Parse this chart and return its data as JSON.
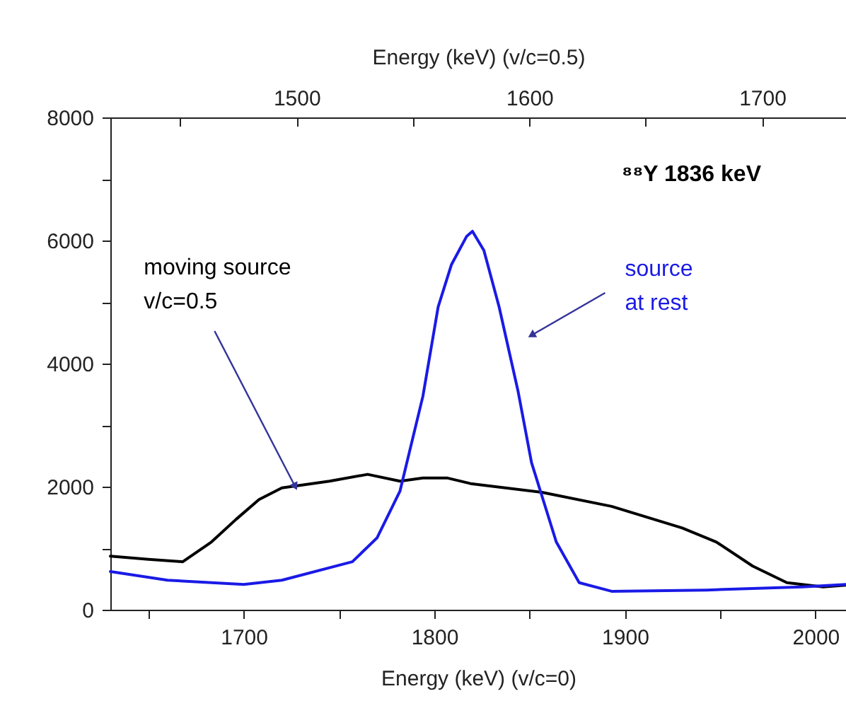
{
  "chart_data": {
    "type": "line",
    "xlabel": "Energy (keV)  (v/c=0)",
    "x2label": "Energy (keV)  (v/c=0.5)",
    "xlim": [
      1630,
      2016
    ],
    "xticks": [
      {
        "value": 1650,
        "label": null
      },
      1700,
      {
        "value": 1750,
        "label": null
      },
      1800,
      {
        "value": 1850,
        "label": null
      },
      1900,
      {
        "value": 1950,
        "label": null
      },
      2000
    ],
    "x2lim": [
      1420,
      1736
    ],
    "x2ticks": [
      {
        "value": 1450,
        "label": null
      },
      1500,
      {
        "value": 1550,
        "label": null
      },
      1600,
      {
        "value": 1650,
        "label": null
      },
      1700
    ],
    "ylim": [
      0,
      8000
    ],
    "yticks": [
      0,
      {
        "value": 1000,
        "label": null
      },
      2000,
      {
        "value": 3000,
        "label": null
      },
      4000,
      {
        "value": 5000,
        "label": null
      },
      6000,
      {
        "value": 7000,
        "label": null
      },
      8000
    ],
    "grid": false,
    "legend": false,
    "marker": "none",
    "line_style": "solid",
    "series": [
      {
        "color": "#000000",
        "x": [
          1630,
          1650,
          1668,
          1683,
          1696,
          1708,
          1720,
          1745,
          1765,
          1782,
          1794,
          1807,
          1819,
          1856,
          1893,
          1930,
          1948,
          1967,
          1985,
          2004,
          2016
        ],
        "values": [
          870,
          820,
          780,
          1100,
          1470,
          1790,
          1980,
          2090,
          2200,
          2090,
          2140,
          2140,
          2050,
          1910,
          1680,
          1330,
          1100,
          710,
          440,
          370,
          400
        ]
      },
      {
        "color": "#1a1ae6",
        "x": [
          1630,
          1660,
          1700,
          1720,
          1757,
          1770,
          1782,
          1794,
          1802,
          1809,
          1817,
          1820,
          1826,
          1834,
          1844,
          1851,
          1864,
          1876,
          1893,
          1943,
          1993,
          2016
        ],
        "values": [
          620,
          480,
          410,
          480,
          780,
          1170,
          1930,
          3470,
          4920,
          5610,
          6070,
          6150,
          5840,
          4920,
          3540,
          2390,
          1100,
          440,
          300,
          320,
          370,
          410
        ]
      }
    ],
    "annotations": [
      {
        "text": "moving source\n v/c=0.5",
        "x": 1727,
        "y": 2000
      },
      {
        "text": "source\nat rest",
        "x": 1851,
        "y": 4460
      },
      "⁸⁸Y 1836 keV"
    ]
  }
}
